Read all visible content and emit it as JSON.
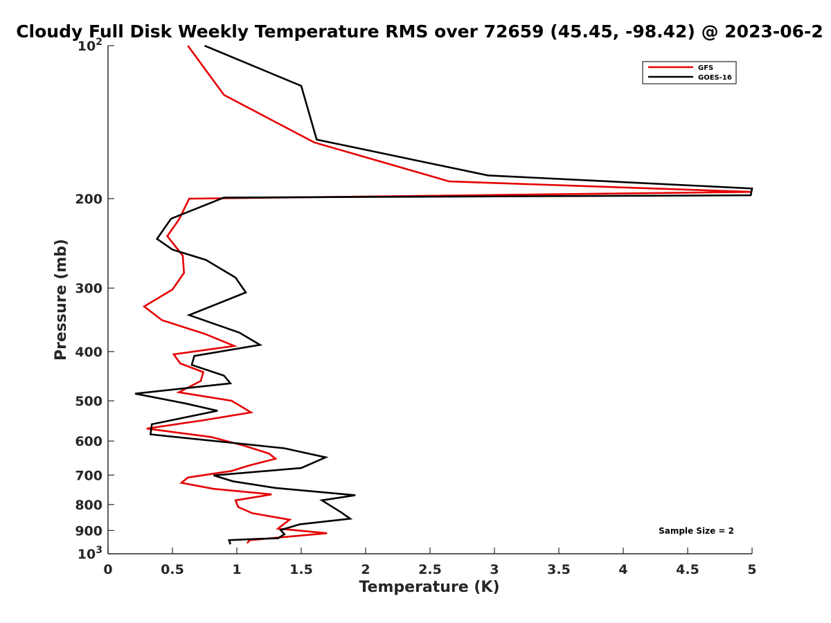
{
  "chart_data": {
    "type": "line",
    "title": "Cloudy Full Disk Weekly Temperature RMS over 72659 (45.45, -98.42) @ 2023-06-2",
    "xlabel": "Temperature (K)",
    "ylabel": "Pressure (mb)",
    "xlim": [
      0,
      5
    ],
    "ylim": [
      100,
      1000
    ],
    "y_scale": "log",
    "y_reversed": true,
    "x_ticks": [
      "0",
      "0.5",
      "1",
      "1.5",
      "2",
      "2.5",
      "3",
      "3.5",
      "4",
      "4.5",
      "5"
    ],
    "y_ticks": [
      {
        "value": 100,
        "base": "10",
        "exp": "2"
      },
      {
        "value": 200,
        "label": "200"
      },
      {
        "value": 300,
        "label": "300"
      },
      {
        "value": 400,
        "label": "400"
      },
      {
        "value": 500,
        "label": "500"
      },
      {
        "value": 600,
        "label": "600"
      },
      {
        "value": 700,
        "label": "700"
      },
      {
        "value": 800,
        "label": "800"
      },
      {
        "value": 900,
        "label": "900"
      },
      {
        "value": 1000,
        "base": "10",
        "exp": "3"
      }
    ],
    "legend_position": "top-right",
    "grid": false,
    "annotation": "Sample Size = 2",
    "series": [
      {
        "name": "GFS",
        "color": "#e50000",
        "points": [
          [
            0.62,
            100
          ],
          [
            0.9,
            125
          ],
          [
            1.6,
            155
          ],
          [
            2.65,
            185
          ],
          [
            5.0,
            194
          ],
          [
            0.63,
            200
          ],
          [
            0.55,
            220
          ],
          [
            0.46,
            237
          ],
          [
            0.58,
            259
          ],
          [
            0.59,
            280
          ],
          [
            0.5,
            302
          ],
          [
            0.28,
            326
          ],
          [
            0.42,
            347
          ],
          [
            0.75,
            369
          ],
          [
            0.98,
            390
          ],
          [
            0.51,
            405
          ],
          [
            0.56,
            422
          ],
          [
            0.74,
            439
          ],
          [
            0.72,
            457
          ],
          [
            0.55,
            481
          ],
          [
            0.96,
            500
          ],
          [
            1.11,
            527
          ],
          [
            0.74,
            546
          ],
          [
            0.3,
            567
          ],
          [
            0.8,
            589
          ],
          [
            1.05,
            612
          ],
          [
            1.25,
            635
          ],
          [
            1.3,
            650
          ],
          [
            1.1,
            670
          ],
          [
            0.96,
            687
          ],
          [
            0.62,
            708
          ],
          [
            0.57,
            725
          ],
          [
            0.82,
            745
          ],
          [
            1.27,
            764
          ],
          [
            0.99,
            785
          ],
          [
            1.01,
            809
          ],
          [
            1.12,
            832
          ],
          [
            1.41,
            857
          ],
          [
            1.37,
            872
          ],
          [
            1.32,
            892
          ],
          [
            1.7,
            911
          ],
          [
            1.1,
            940
          ],
          [
            1.08,
            953
          ]
        ]
      },
      {
        "name": "GOES-16",
        "color": "#000000",
        "points": [
          [
            0.75,
            100
          ],
          [
            1.5,
            120
          ],
          [
            1.62,
            153
          ],
          [
            2.95,
            180
          ],
          [
            5.0,
            191
          ],
          [
            4.99,
            197
          ],
          [
            0.9,
            199
          ],
          [
            0.49,
            219
          ],
          [
            0.38,
            240
          ],
          [
            0.5,
            252
          ],
          [
            0.76,
            264
          ],
          [
            0.99,
            286
          ],
          [
            1.07,
            306
          ],
          [
            0.63,
            339
          ],
          [
            1.02,
            367
          ],
          [
            1.18,
            388
          ],
          [
            0.67,
            408
          ],
          [
            0.65,
            425
          ],
          [
            0.9,
            446
          ],
          [
            0.95,
            462
          ],
          [
            0.21,
            484
          ],
          [
            0.6,
            506
          ],
          [
            0.85,
            523
          ],
          [
            0.34,
            556
          ],
          [
            0.33,
            582
          ],
          [
            1.37,
            620
          ],
          [
            1.69,
            646
          ],
          [
            1.5,
            678
          ],
          [
            0.82,
            701
          ],
          [
            0.97,
            720
          ],
          [
            1.3,
            742
          ],
          [
            1.92,
            767
          ],
          [
            1.66,
            785
          ],
          [
            1.81,
            829
          ],
          [
            1.88,
            853
          ],
          [
            1.49,
            875
          ],
          [
            1.34,
            898
          ],
          [
            1.37,
            915
          ],
          [
            1.32,
            932
          ],
          [
            1.15,
            935
          ],
          [
            0.94,
            940
          ],
          [
            0.95,
            958
          ]
        ]
      }
    ]
  }
}
